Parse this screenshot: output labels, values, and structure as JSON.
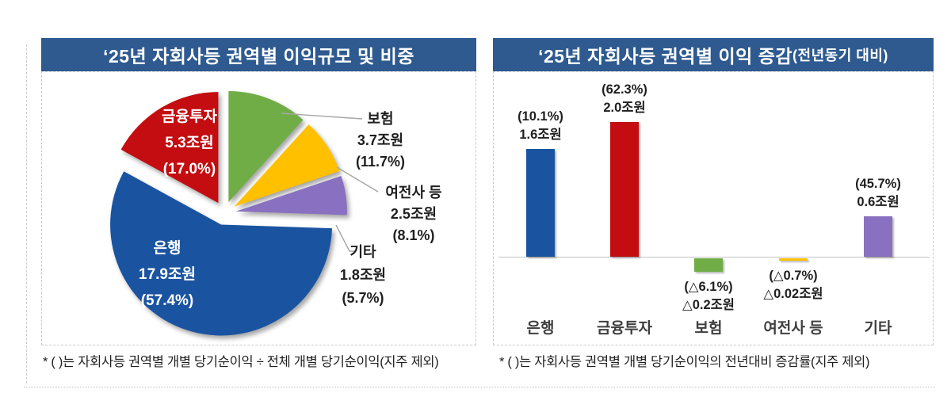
{
  "chart_data": [
    {
      "type": "pie",
      "title": "‘25년 자회사등 권역별 이익규모 및 비중",
      "unit": "조원",
      "start_angle_deg": 0,
      "direction": "clockwise",
      "exploded": true,
      "slices": [
        {
          "name": "보험",
          "value": 3.7,
          "pct": 11.7,
          "value_label": "3.7조원",
          "pct_label": "(11.7%)",
          "color": "#70AD47",
          "label_position": "outside"
        },
        {
          "name": "여전사 등",
          "value": 2.5,
          "pct": 8.1,
          "value_label": "2.5조원",
          "pct_label": "(8.1%)",
          "color": "#FFC000",
          "label_position": "outside"
        },
        {
          "name": "기타",
          "value": 1.8,
          "pct": 5.7,
          "value_label": "1.8조원",
          "pct_label": "(5.7%)",
          "color": "#8970C0",
          "label_position": "outside"
        },
        {
          "name": "은행",
          "value": 17.9,
          "pct": 57.4,
          "value_label": "17.9조원",
          "pct_label": "(57.4%)",
          "color": "#1A54A0",
          "label_position": "inside"
        },
        {
          "name": "금융투자",
          "value": 5.3,
          "pct": 17.0,
          "value_label": "5.3조원",
          "pct_label": "(17.0%)",
          "color": "#C40D10",
          "label_position": "inside"
        }
      ]
    },
    {
      "type": "bar",
      "title": "‘25년 자회사등 권역별 이익 증감",
      "title_suffix": "(전년동기 대비)",
      "unit": "조원",
      "categories": [
        "은행",
        "금융투자",
        "보험",
        "여전사 등",
        "기타"
      ],
      "values": [
        1.6,
        2.0,
        -0.2,
        -0.02,
        0.6
      ],
      "pct_labels": [
        "(10.1%)",
        "(62.3%)",
        "(△6.1%)",
        "(△0.7%)",
        "(45.7%)"
      ],
      "value_labels": [
        "1.6조원",
        "2.0조원",
        "△0.2조원",
        "△0.02조원",
        "0.6조원"
      ],
      "bar_colors": [
        "#1A54A0",
        "#C40D10",
        "#70AD47",
        "#FFC000",
        "#8970C0"
      ],
      "baseline": 0,
      "ylim": [
        -1.3,
        2.7
      ],
      "grid": false,
      "y_axis_visible": false
    }
  ],
  "footnotes": {
    "left": "* (  )는 자회사등 권역별 개별 당기순이익 ÷ 전체 개별 당기순이익(지주 제외)",
    "right": "* (  )는 자회사등 권역별 개별 당기순이익의 전년대비 증감률(지주 제외)"
  },
  "colors": {
    "title_bar": "#2E5A90",
    "bank_blue": "#1A54A0",
    "fin_red": "#C40D10",
    "ins_green": "#70AD47",
    "cap_yellow": "#FFC000",
    "etc_purple": "#8970C0"
  }
}
